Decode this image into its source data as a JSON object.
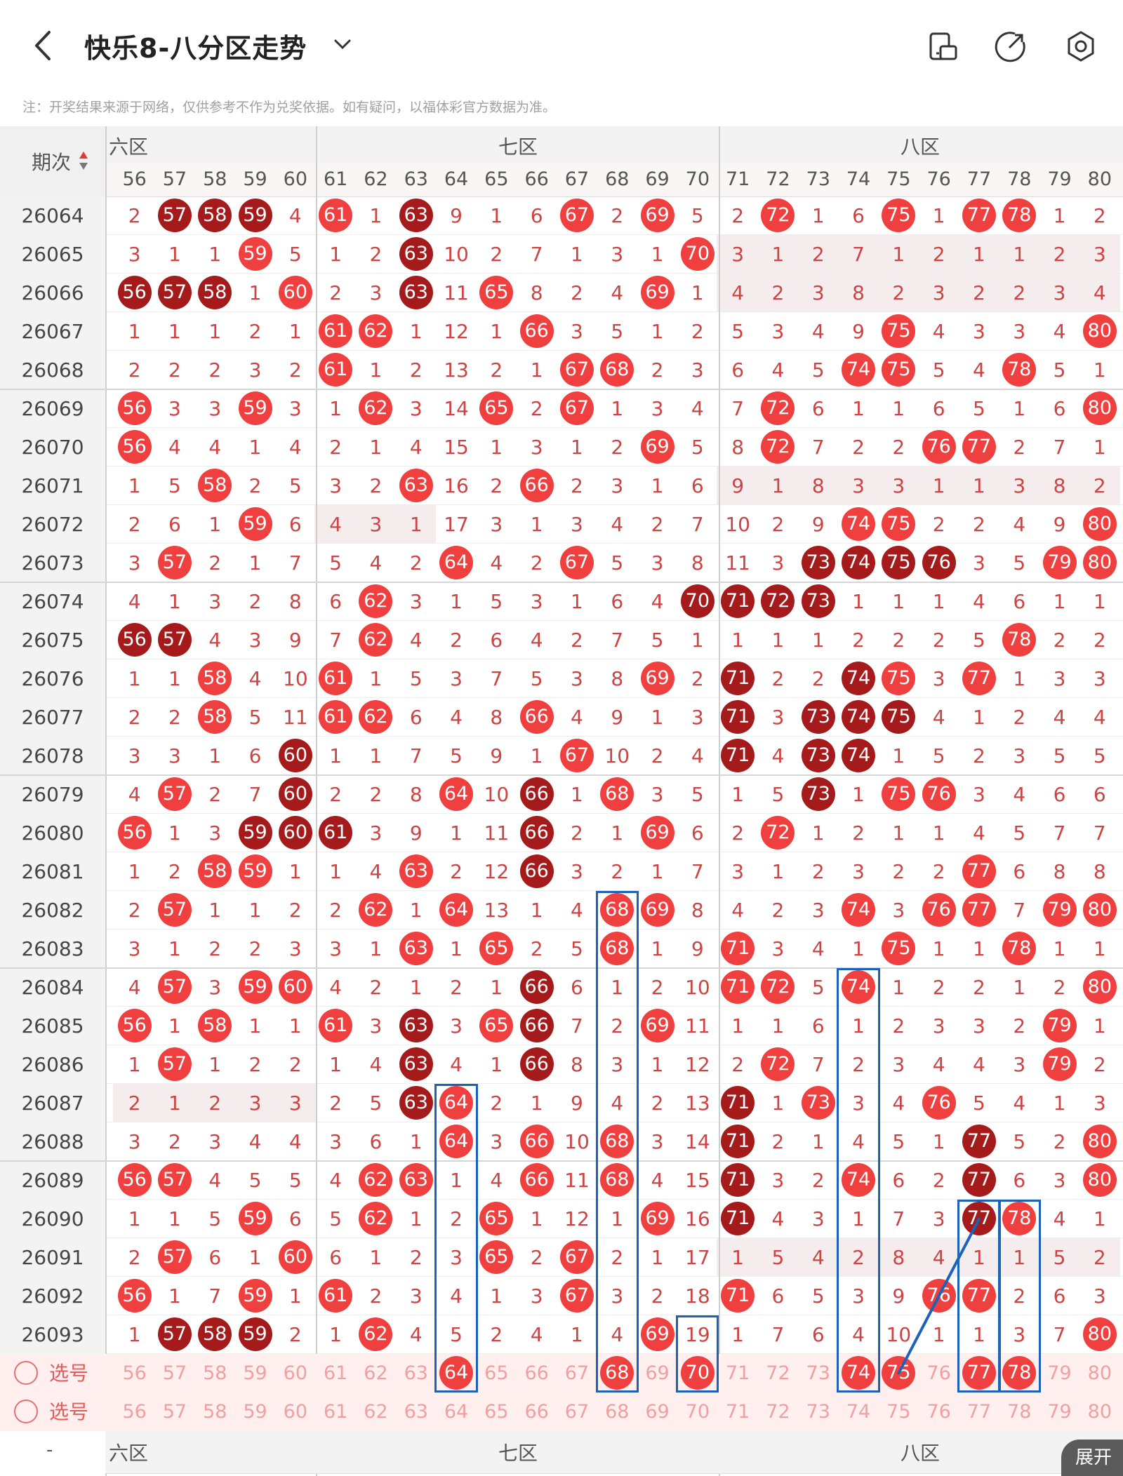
{
  "header": {
    "title": "快乐8-八分区走势",
    "icons": [
      "back-icon",
      "chevron-down-icon",
      "screen-rotate-icon",
      "share-icon",
      "settings-icon"
    ]
  },
  "notice": "注：开奖结果来源于网络，仅供参考不作为兑奖依据。如有疑问，以福体彩官方数据为准。",
  "table": {
    "period_label": "期次",
    "zones": [
      "六区",
      "七区",
      "八区"
    ],
    "columns": [
      56,
      57,
      58,
      59,
      60,
      61,
      62,
      63,
      64,
      65,
      66,
      67,
      68,
      69,
      70,
      71,
      72,
      73,
      74,
      75,
      76,
      77,
      78,
      79,
      80
    ],
    "rows": [
      {
        "p": "26064",
        "c": [
          "2",
          "*57",
          "*58",
          "*59",
          "4",
          "61",
          "1",
          "*63",
          "9",
          "1",
          "6",
          "67",
          "2",
          "69",
          "5",
          "2",
          "72",
          "1",
          "6",
          "75",
          "1",
          "77",
          "78",
          "1",
          "2"
        ]
      },
      {
        "p": "26065",
        "c": [
          "3",
          "1",
          "1",
          "59",
          "5",
          "1",
          "2",
          "*63",
          "10",
          "2",
          "7",
          "1",
          "3",
          "1",
          "70",
          "3",
          "1",
          "2",
          "7",
          "1",
          "2",
          "1",
          "1",
          "2",
          "3"
        ]
      },
      {
        "p": "26066",
        "c": [
          "*56",
          "*57",
          "*58",
          "1",
          "60",
          "2",
          "3",
          "*63",
          "11",
          "65",
          "8",
          "2",
          "4",
          "69",
          "1",
          "4",
          "2",
          "3",
          "8",
          "2",
          "3",
          "2",
          "2",
          "3",
          "4"
        ]
      },
      {
        "p": "26067",
        "c": [
          "1",
          "1",
          "1",
          "2",
          "1",
          "61",
          "62",
          "1",
          "12",
          "1",
          "66",
          "3",
          "5",
          "1",
          "2",
          "5",
          "3",
          "4",
          "9",
          "75",
          "4",
          "3",
          "3",
          "4",
          "80"
        ]
      },
      {
        "p": "26068",
        "c": [
          "2",
          "2",
          "2",
          "3",
          "2",
          "61",
          "1",
          "2",
          "13",
          "2",
          "1",
          "67",
          "68",
          "2",
          "3",
          "6",
          "4",
          "5",
          "74",
          "75",
          "5",
          "4",
          "78",
          "5",
          "1"
        ]
      },
      {
        "p": "26069",
        "c": [
          "56",
          "3",
          "3",
          "59",
          "3",
          "1",
          "62",
          "3",
          "14",
          "65",
          "2",
          "67",
          "1",
          "3",
          "4",
          "7",
          "72",
          "6",
          "1",
          "1",
          "6",
          "5",
          "1",
          "6",
          "80"
        ]
      },
      {
        "p": "26070",
        "c": [
          "56",
          "4",
          "4",
          "1",
          "4",
          "2",
          "1",
          "4",
          "15",
          "1",
          "3",
          "1",
          "2",
          "69",
          "5",
          "8",
          "72",
          "7",
          "2",
          "2",
          "76",
          "77",
          "2",
          "7",
          "1"
        ]
      },
      {
        "p": "26071",
        "c": [
          "1",
          "5",
          "58",
          "2",
          "5",
          "3",
          "2",
          "63",
          "16",
          "2",
          "66",
          "2",
          "3",
          "1",
          "6",
          "9",
          "1",
          "8",
          "3",
          "3",
          "1",
          "1",
          "3",
          "8",
          "2"
        ]
      },
      {
        "p": "26072",
        "c": [
          "2",
          "6",
          "1",
          "59",
          "6",
          "4",
          "3",
          "1",
          "17",
          "3",
          "1",
          "3",
          "4",
          "2",
          "7",
          "10",
          "2",
          "9",
          "74",
          "75",
          "2",
          "2",
          "4",
          "9",
          "80"
        ]
      },
      {
        "p": "26073",
        "c": [
          "3",
          "57",
          "2",
          "1",
          "7",
          "5",
          "4",
          "2",
          "64",
          "4",
          "2",
          "67",
          "5",
          "3",
          "8",
          "11",
          "3",
          "*73",
          "*74",
          "*75",
          "*76",
          "3",
          "5",
          "79",
          "80"
        ]
      },
      {
        "p": "26074",
        "c": [
          "4",
          "1",
          "3",
          "2",
          "8",
          "6",
          "62",
          "3",
          "1",
          "5",
          "3",
          "1",
          "6",
          "4",
          "*70",
          "*71",
          "*72",
          "*73",
          "1",
          "1",
          "1",
          "4",
          "6",
          "1",
          "1"
        ]
      },
      {
        "p": "26075",
        "c": [
          "*56",
          "*57",
          "4",
          "3",
          "9",
          "7",
          "62",
          "4",
          "2",
          "6",
          "4",
          "2",
          "7",
          "5",
          "1",
          "1",
          "1",
          "1",
          "2",
          "2",
          "2",
          "5",
          "78",
          "2",
          "2"
        ]
      },
      {
        "p": "26076",
        "c": [
          "1",
          "1",
          "58",
          "4",
          "10",
          "61",
          "1",
          "5",
          "3",
          "7",
          "5",
          "3",
          "8",
          "69",
          "2",
          "*71",
          "2",
          "2",
          "*74",
          "75",
          "3",
          "77",
          "1",
          "3",
          "3"
        ]
      },
      {
        "p": "26077",
        "c": [
          "2",
          "2",
          "58",
          "5",
          "11",
          "61",
          "62",
          "6",
          "4",
          "8",
          "66",
          "4",
          "9",
          "1",
          "3",
          "*71",
          "3",
          "*73",
          "*74",
          "*75",
          "4",
          "1",
          "2",
          "4",
          "4"
        ]
      },
      {
        "p": "26078",
        "c": [
          "3",
          "3",
          "1",
          "6",
          "*60",
          "1",
          "1",
          "7",
          "5",
          "9",
          "1",
          "67",
          "10",
          "2",
          "4",
          "*71",
          "4",
          "*73",
          "*74",
          "1",
          "5",
          "2",
          "3",
          "5",
          "5"
        ]
      },
      {
        "p": "26079",
        "c": [
          "4",
          "57",
          "2",
          "7",
          "*60",
          "2",
          "2",
          "8",
          "64",
          "10",
          "*66",
          "1",
          "68",
          "3",
          "5",
          "1",
          "5",
          "*73",
          "1",
          "75",
          "76",
          "3",
          "4",
          "6",
          "6"
        ]
      },
      {
        "p": "26080",
        "c": [
          "56",
          "1",
          "3",
          "*59",
          "*60",
          "*61",
          "3",
          "9",
          "1",
          "11",
          "*66",
          "2",
          "1",
          "69",
          "6",
          "2",
          "72",
          "1",
          "2",
          "1",
          "1",
          "4",
          "5",
          "7",
          "7"
        ]
      },
      {
        "p": "26081",
        "c": [
          "1",
          "2",
          "58",
          "59",
          "1",
          "1",
          "4",
          "63",
          "2",
          "12",
          "*66",
          "3",
          "2",
          "1",
          "7",
          "3",
          "1",
          "2",
          "3",
          "2",
          "2",
          "77",
          "6",
          "8",
          "8"
        ]
      },
      {
        "p": "26082",
        "c": [
          "2",
          "57",
          "1",
          "1",
          "2",
          "2",
          "62",
          "1",
          "64",
          "13",
          "1",
          "4",
          "68",
          "69",
          "8",
          "4",
          "2",
          "3",
          "74",
          "3",
          "76",
          "77",
          "7",
          "79",
          "80"
        ]
      },
      {
        "p": "26083",
        "c": [
          "3",
          "1",
          "2",
          "2",
          "3",
          "3",
          "1",
          "63",
          "1",
          "65",
          "2",
          "5",
          "68",
          "1",
          "9",
          "71",
          "3",
          "4",
          "1",
          "75",
          "1",
          "1",
          "78",
          "1",
          "1"
        ]
      },
      {
        "p": "26084",
        "c": [
          "4",
          "57",
          "3",
          "59",
          "60",
          "4",
          "2",
          "1",
          "2",
          "1",
          "*66",
          "6",
          "1",
          "2",
          "10",
          "71",
          "72",
          "5",
          "74",
          "1",
          "2",
          "2",
          "1",
          "2",
          "80"
        ]
      },
      {
        "p": "26085",
        "c": [
          "56",
          "1",
          "58",
          "1",
          "1",
          "61",
          "3",
          "*63",
          "3",
          "65",
          "*66",
          "7",
          "2",
          "69",
          "11",
          "1",
          "1",
          "6",
          "1",
          "2",
          "3",
          "3",
          "2",
          "79",
          "1"
        ]
      },
      {
        "p": "26086",
        "c": [
          "1",
          "57",
          "1",
          "2",
          "2",
          "1",
          "4",
          "*63",
          "4",
          "1",
          "*66",
          "8",
          "3",
          "1",
          "12",
          "2",
          "72",
          "7",
          "2",
          "3",
          "4",
          "4",
          "3",
          "79",
          "2"
        ]
      },
      {
        "p": "26087",
        "c": [
          "2",
          "1",
          "2",
          "3",
          "3",
          "2",
          "5",
          "*63",
          "64",
          "2",
          "1",
          "9",
          "4",
          "2",
          "13",
          "*71",
          "1",
          "73",
          "3",
          "4",
          "76",
          "5",
          "4",
          "1",
          "3"
        ]
      },
      {
        "p": "26088",
        "c": [
          "3",
          "2",
          "3",
          "4",
          "4",
          "3",
          "6",
          "1",
          "64",
          "3",
          "66",
          "10",
          "68",
          "3",
          "14",
          "*71",
          "2",
          "1",
          "4",
          "5",
          "1",
          "*77",
          "5",
          "2",
          "80"
        ]
      },
      {
        "p": "26089",
        "c": [
          "56",
          "57",
          "4",
          "5",
          "5",
          "4",
          "62",
          "63",
          "1",
          "4",
          "66",
          "11",
          "68",
          "4",
          "15",
          "*71",
          "3",
          "2",
          "74",
          "6",
          "2",
          "*77",
          "6",
          "3",
          "80"
        ]
      },
      {
        "p": "26090",
        "c": [
          "1",
          "1",
          "5",
          "59",
          "6",
          "5",
          "62",
          "1",
          "2",
          "65",
          "1",
          "12",
          "1",
          "69",
          "16",
          "*71",
          "4",
          "3",
          "1",
          "7",
          "3",
          "*77",
          "78",
          "4",
          "1"
        ]
      },
      {
        "p": "26091",
        "c": [
          "2",
          "57",
          "6",
          "1",
          "60",
          "6",
          "1",
          "2",
          "3",
          "65",
          "2",
          "67",
          "2",
          "1",
          "17",
          "1",
          "5",
          "4",
          "2",
          "8",
          "4",
          "1",
          "1",
          "5",
          "2"
        ]
      },
      {
        "p": "26092",
        "c": [
          "56",
          "1",
          "7",
          "59",
          "1",
          "61",
          "2",
          "3",
          "4",
          "1",
          "3",
          "67",
          "3",
          "2",
          "18",
          "71",
          "6",
          "5",
          "3",
          "9",
          "76",
          "77",
          "2",
          "6",
          "3"
        ]
      },
      {
        "p": "26093",
        "c": [
          "1",
          "*57",
          "*58",
          "*59",
          "2",
          "1",
          "62",
          "4",
          "5",
          "2",
          "4",
          "1",
          "4",
          "69",
          "19",
          "1",
          "7",
          "6",
          "4",
          "10",
          "1",
          "1",
          "3",
          "7",
          "80"
        ]
      }
    ],
    "select_label": "选号",
    "select_rows": [
      {
        "picked": [
          64,
          68,
          70,
          74,
          75,
          77,
          78
        ]
      },
      {
        "picked": []
      }
    ],
    "bottom_zones": [
      "六区",
      "七区",
      "八区"
    ],
    "bottom_left": "-"
  },
  "expand_label": "展开",
  "colors": {
    "ball_red": "#ef3f3f",
    "ball_dark": "#a51b1b",
    "miss_text": "#c44",
    "annotation_blue": "#1a63b8"
  }
}
